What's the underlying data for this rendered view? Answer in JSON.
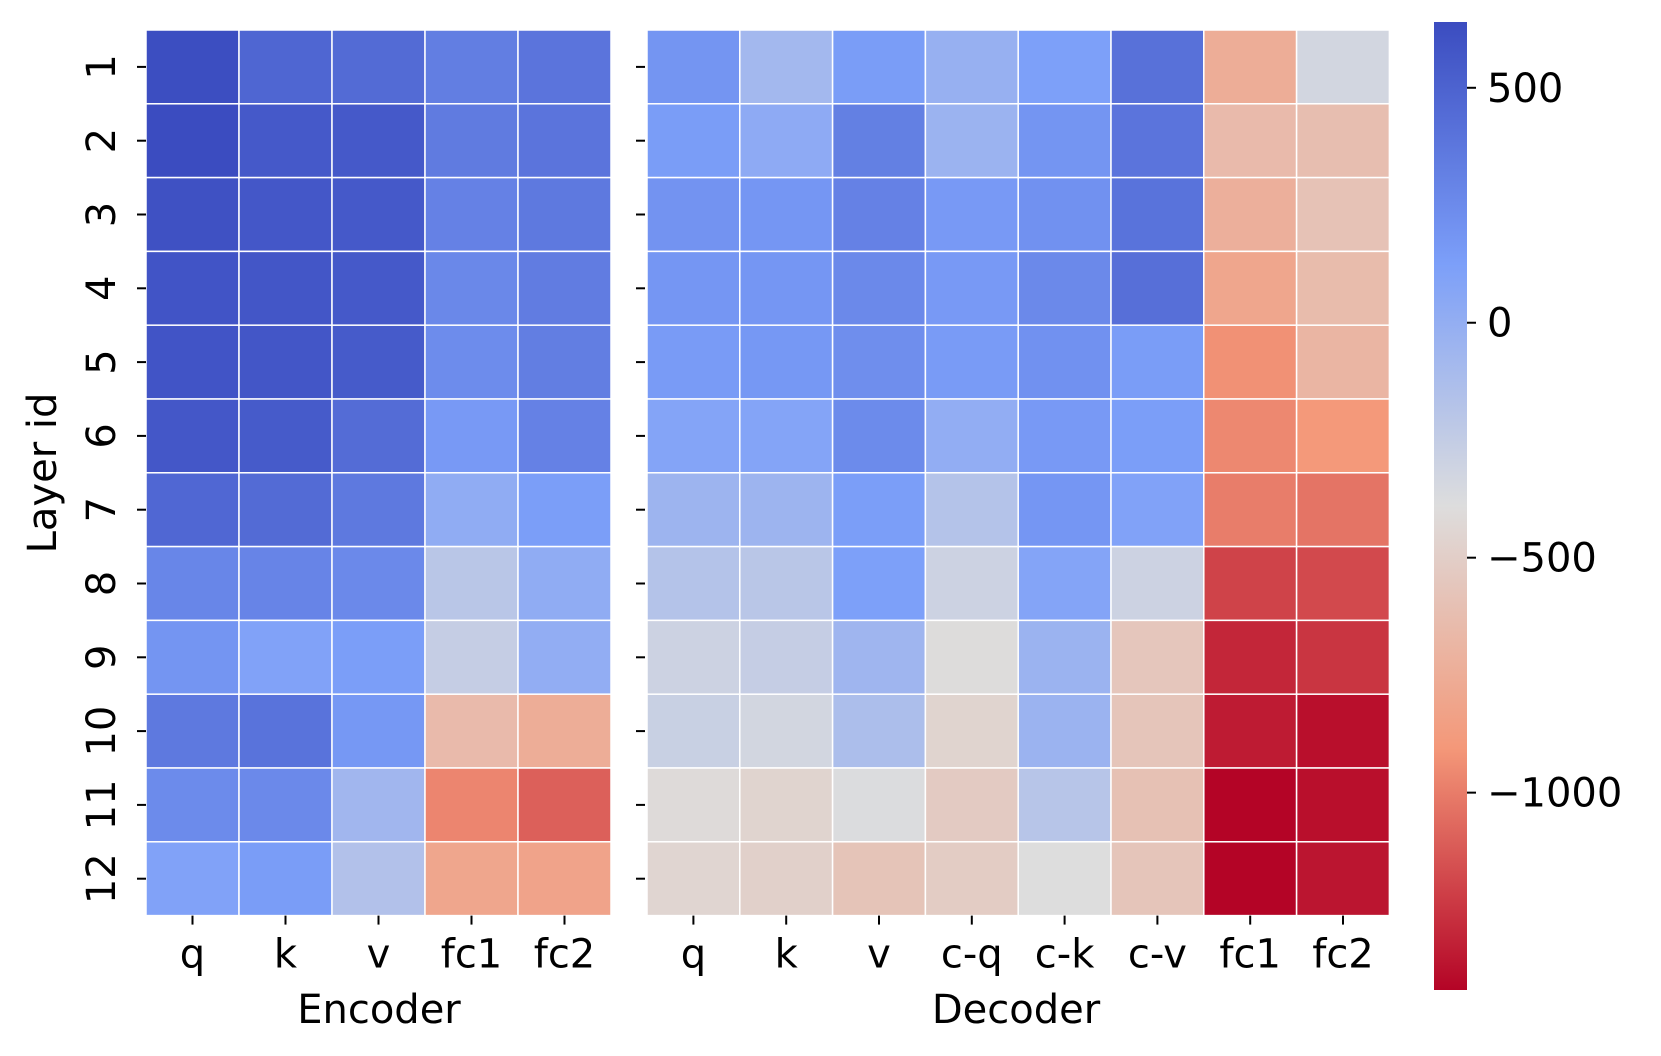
{
  "chart_data": {
    "type": "heatmap",
    "ylabel": "Layer id",
    "rows": [
      "1",
      "2",
      "3",
      "4",
      "5",
      "6",
      "7",
      "8",
      "9",
      "10",
      "11",
      "12"
    ],
    "colorbar": {
      "colormap": "coolwarm",
      "vmin": -1420,
      "vmax": 640,
      "ticks": [
        500,
        0,
        -500,
        -1000
      ],
      "tick_labels": [
        "500",
        "0",
        "−500",
        "−1000"
      ]
    },
    "panels": [
      {
        "name": "encoder",
        "xlabel": "Encoder",
        "columns": [
          "q",
          "k",
          "v",
          "fc1",
          "fc2"
        ],
        "values": [
          [
            630,
            480,
            450,
            330,
            390
          ],
          [
            640,
            560,
            560,
            350,
            390
          ],
          [
            610,
            570,
            560,
            310,
            360
          ],
          [
            590,
            580,
            560,
            270,
            340
          ],
          [
            590,
            580,
            550,
            240,
            330
          ],
          [
            570,
            550,
            440,
            160,
            310
          ],
          [
            470,
            450,
            360,
            20,
            130
          ],
          [
            280,
            290,
            260,
            -200,
            20
          ],
          [
            190,
            100,
            130,
            -260,
            10
          ],
          [
            360,
            400,
            170,
            -650,
            -750
          ],
          [
            250,
            260,
            -70,
            -970,
            -1100
          ],
          [
            100,
            140,
            -160,
            -800,
            -820
          ]
        ]
      },
      {
        "name": "decoder",
        "xlabel": "Decoder",
        "columns": [
          "q",
          "k",
          "v",
          "c-q",
          "c-k",
          "c-v",
          "fc1",
          "fc2"
        ],
        "values": [
          [
            190,
            -80,
            140,
            -20,
            120,
            410,
            -750,
            -330
          ],
          [
            140,
            30,
            320,
            -40,
            190,
            390,
            -650,
            -620
          ],
          [
            200,
            180,
            310,
            160,
            210,
            400,
            -730,
            -590
          ],
          [
            180,
            180,
            260,
            160,
            260,
            420,
            -800,
            -640
          ],
          [
            150,
            170,
            230,
            150,
            210,
            140,
            -930,
            -690
          ],
          [
            80,
            80,
            250,
            10,
            160,
            130,
            -960,
            -900
          ],
          [
            -50,
            -50,
            130,
            -170,
            180,
            100,
            -1000,
            -1030
          ],
          [
            -170,
            -200,
            120,
            -300,
            80,
            -300,
            -1200,
            -1180
          ],
          [
            -300,
            -260,
            -60,
            -400,
            -40,
            -560,
            -1300,
            -1250
          ],
          [
            -280,
            -330,
            -130,
            -460,
            -40,
            -570,
            -1340,
            -1380
          ],
          [
            -410,
            -460,
            -380,
            -530,
            -190,
            -600,
            -1420,
            -1380
          ],
          [
            -450,
            -490,
            -580,
            -520,
            -390,
            -570,
            -1420,
            -1360
          ]
        ]
      }
    ]
  }
}
